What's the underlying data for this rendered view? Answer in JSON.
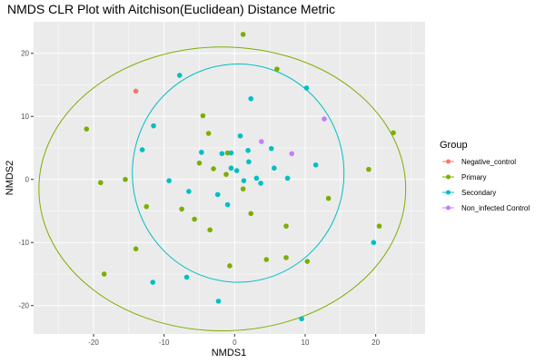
{
  "chart_data": {
    "type": "scatter",
    "title": "NMDS CLR Plot with Aitchison(Euclidean) Distance Metric",
    "xlabel": "NMDS1",
    "ylabel": "NMDS2",
    "xlim": [
      -28.5,
      27
    ],
    "ylim": [
      -24.5,
      25
    ],
    "x_ticks": [
      -20,
      -10,
      0,
      10,
      20
    ],
    "y_ticks": [
      -20,
      -10,
      0,
      10,
      20
    ],
    "x_tick_labels": [
      "-20",
      "-10",
      "0",
      "10",
      "20"
    ],
    "y_tick_labels": [
      "-20",
      "-10",
      "0",
      "10",
      "20"
    ],
    "grid": true,
    "panel_background": "#EBEBEB",
    "grid_color": "#FFFFFF",
    "legend": {
      "title": "Group",
      "position": "right",
      "entries": [
        {
          "label": "Negative_control",
          "color": "#F8766D"
        },
        {
          "label": "Primary",
          "color": "#7CAE00"
        },
        {
          "label": "Secondary",
          "color": "#00BFC4"
        },
        {
          "label": "Non_infected Control",
          "color": "#C77CFF"
        }
      ]
    },
    "series": [
      {
        "name": "Negative_control",
        "color": "#F8766D",
        "points": [
          [
            -14,
            14
          ]
        ]
      },
      {
        "name": "Primary",
        "color": "#7CAE00",
        "points": [
          [
            1.2,
            23
          ],
          [
            6,
            17.5
          ],
          [
            -21,
            8
          ],
          [
            -19,
            -0.5
          ],
          [
            -15.5,
            0
          ],
          [
            -12.5,
            -4.3
          ],
          [
            -14,
            -11
          ],
          [
            -18.5,
            -15
          ],
          [
            -4.5,
            10.1
          ],
          [
            -3.7,
            7.3
          ],
          [
            -5,
            2.6
          ],
          [
            -3,
            1.7
          ],
          [
            -7.5,
            -4.7
          ],
          [
            -5.7,
            -6.3
          ],
          [
            -3.5,
            -8
          ],
          [
            -1.2,
            0.8
          ],
          [
            -1,
            4.2
          ],
          [
            1.2,
            -1.5
          ],
          [
            -0.7,
            -13.7
          ],
          [
            2.3,
            -5.4
          ],
          [
            4.5,
            -12.7
          ],
          [
            7.3,
            -7.4
          ],
          [
            7.3,
            -12.4
          ],
          [
            10.3,
            -13
          ],
          [
            13.3,
            -3
          ],
          [
            19,
            1.6
          ],
          [
            20.5,
            -7.4
          ],
          [
            22.5,
            7.4
          ]
        ]
      },
      {
        "name": "Secondary",
        "color": "#00BFC4",
        "points": [
          [
            -7.8,
            16.5
          ],
          [
            2.3,
            12.8
          ],
          [
            10.2,
            14.5
          ],
          [
            -11.5,
            8.5
          ],
          [
            -13.1,
            4.7
          ],
          [
            -9.3,
            -0.2
          ],
          [
            -6.5,
            -1.9
          ],
          [
            -4.7,
            4.3
          ],
          [
            -1.8,
            4.1
          ],
          [
            -0.5,
            4.2
          ],
          [
            0.8,
            6.9
          ],
          [
            -0.5,
            1.8
          ],
          [
            0.3,
            1.4
          ],
          [
            1.3,
            -0.2
          ],
          [
            2,
            2.8
          ],
          [
            1.9,
            4.6
          ],
          [
            3.1,
            0.2
          ],
          [
            3.7,
            -0.6
          ],
          [
            5.2,
            4.9
          ],
          [
            5.6,
            1.8
          ],
          [
            7.5,
            0.2
          ],
          [
            11.5,
            2.3
          ],
          [
            -2.4,
            -2.4
          ],
          [
            -1,
            -4
          ],
          [
            -6.8,
            -15.5
          ],
          [
            -11.6,
            -16.3
          ],
          [
            -2.3,
            -19.3
          ],
          [
            9.5,
            -22.1
          ],
          [
            19.7,
            -10
          ]
        ]
      },
      {
        "name": "Non_infected Control",
        "color": "#C77CFF",
        "points": [
          [
            3.8,
            6
          ],
          [
            8.1,
            4.1
          ],
          [
            12.7,
            9.6
          ]
        ]
      }
    ],
    "ellipses": [
      {
        "group": "Primary",
        "color": "#7CAE00",
        "cx": -1.75,
        "cy": -1.5,
        "rx": 26,
        "ry": 22.5
      },
      {
        "group": "Secondary",
        "color": "#00BFC4",
        "cx": 0.5,
        "cy": 1,
        "rx": 15,
        "ry": 17.3
      }
    ]
  }
}
